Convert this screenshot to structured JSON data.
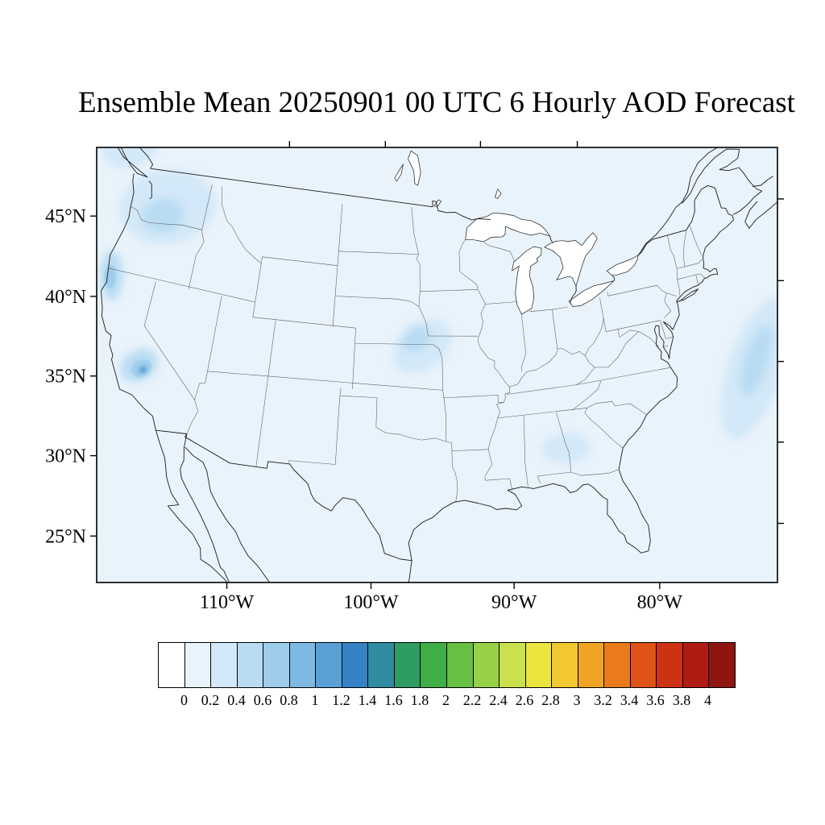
{
  "title": "Ensemble Mean 20250901 00 UTC 6 Hourly AOD Forecast",
  "axes": {
    "lat_ticks": [
      {
        "value": 45,
        "label": "45°N"
      },
      {
        "value": 40,
        "label": "40°N"
      },
      {
        "value": 35,
        "label": "35°N"
      },
      {
        "value": 30,
        "label": "30°N"
      },
      {
        "value": 25,
        "label": "25°N"
      }
    ],
    "lon_ticks": [
      {
        "value": -110,
        "label": "110°W"
      },
      {
        "value": -100,
        "label": "100°W"
      },
      {
        "value": -90,
        "label": "90°W"
      },
      {
        "value": -80,
        "label": "80°W"
      }
    ]
  },
  "colorbar": {
    "labels": [
      "0",
      "0.2",
      "0.4",
      "0.6",
      "0.8",
      "1",
      "1.2",
      "1.4",
      "1.6",
      "1.8",
      "2",
      "2.2",
      "2.4",
      "2.6",
      "2.8",
      "3",
      "3.2",
      "3.4",
      "3.6",
      "3.8",
      "4"
    ],
    "colors": [
      "#ffffff",
      "#e9f3fb",
      "#d3e8f8",
      "#b9dcf3",
      "#9ecdec",
      "#7db9e3",
      "#58a0d6",
      "#3583c4",
      "#2e8ba0",
      "#2f9d63",
      "#3fae46",
      "#66c043",
      "#97d148",
      "#c8e14d",
      "#ece43f",
      "#f2c831",
      "#f0a325",
      "#ea7b1c",
      "#df5317",
      "#cd3215",
      "#b01c14",
      "#8f1511"
    ]
  },
  "map_style": {
    "lake_fill": "#ffffff",
    "coast_color": "#1a1a1a",
    "state_color": "#5a5a5a",
    "frame_color": "#000000"
  },
  "chart_data": {
    "type": "heatmap",
    "title": "Ensemble Mean 20250901 00 UTC 6 Hourly AOD Forecast",
    "variable": "Aerosol Optical Depth",
    "region": "Continental United States (Lambert conformal view)",
    "levels": [
      0,
      0.2,
      0.4,
      0.6,
      0.8,
      1,
      1.2,
      1.4,
      1.6,
      1.8,
      2,
      2.2,
      2.4,
      2.6,
      2.8,
      3,
      3.2,
      3.4,
      3.6,
      3.8,
      4
    ],
    "background_level": "0-0.2",
    "features": [
      {
        "name": "pacific-northwest",
        "center_lon": -120.7,
        "center_lat": 46.9,
        "rx_deg": 4.6,
        "ry_deg": 2.4,
        "rot_deg": -8,
        "aod_range": "0.2-0.4",
        "color_index": 2,
        "soft": true
      },
      {
        "name": "pacific-northwest-core",
        "center_lon": -120.9,
        "center_lat": 46.3,
        "rx_deg": 2.0,
        "ry_deg": 1.1,
        "rot_deg": -10,
        "aod_range": "0.4-0.6",
        "color_index": 3,
        "soft": true
      },
      {
        "name": "bc-coast",
        "center_lon": -126.0,
        "center_lat": 50.2,
        "rx_deg": 3.0,
        "ry_deg": 1.6,
        "rot_deg": -25,
        "aod_range": "0.2-0.4",
        "color_index": 2,
        "soft": true
      },
      {
        "name": "nw-california-coast",
        "center_lon": -123.9,
        "center_lat": 41.6,
        "rx_deg": 1.0,
        "ry_deg": 1.6,
        "rot_deg": 0,
        "aod_range": "0.4-0.6",
        "color_index": 3,
        "soft": true
      },
      {
        "name": "nw-california-core",
        "center_lon": -124.0,
        "center_lat": 41.5,
        "rx_deg": 0.5,
        "ry_deg": 0.8,
        "rot_deg": 0,
        "aod_range": "0.6-0.8",
        "color_index": 4,
        "soft": false
      },
      {
        "name": "sierra-plume",
        "center_lon": -119.6,
        "center_lat": 36.4,
        "rx_deg": 1.6,
        "ry_deg": 1.0,
        "rot_deg": -30,
        "aod_range": "0.4-0.6",
        "color_index": 3,
        "soft": true
      },
      {
        "name": "sierra-plume-mid",
        "center_lon": -119.35,
        "center_lat": 36.25,
        "rx_deg": 0.85,
        "ry_deg": 0.55,
        "rot_deg": -30,
        "aod_range": "0.6-0.8",
        "color_index": 4,
        "soft": false
      },
      {
        "name": "sierra-plume-core",
        "center_lon": -119.25,
        "center_lat": 36.2,
        "rx_deg": 0.42,
        "ry_deg": 0.28,
        "rot_deg": -30,
        "aod_range": "0.8-1.0",
        "color_index": 5,
        "soft": false
      },
      {
        "name": "sierra-plume-peak",
        "center_lon": -119.2,
        "center_lat": 36.18,
        "rx_deg": 0.18,
        "ry_deg": 0.13,
        "rot_deg": -30,
        "aod_range": "1.0-1.2",
        "color_index": 6,
        "soft": false
      },
      {
        "name": "central-plains",
        "center_lon": -96.3,
        "center_lat": 39.9,
        "rx_deg": 2.8,
        "ry_deg": 1.5,
        "rot_deg": -38,
        "aod_range": "0.2-0.4",
        "color_index": 2,
        "soft": true
      },
      {
        "name": "central-plains-core",
        "center_lon": -96.8,
        "center_lat": 40.4,
        "rx_deg": 1.3,
        "ry_deg": 0.8,
        "rot_deg": -35,
        "aod_range": "0.4-0.6",
        "color_index": 3,
        "soft": true
      },
      {
        "name": "southeast",
        "center_lon": -85.2,
        "center_lat": 32.6,
        "rx_deg": 1.9,
        "ry_deg": 1.0,
        "rot_deg": -5,
        "aod_range": "0.2-0.4",
        "color_index": 2,
        "soft": true
      },
      {
        "name": "atlantic-offshore",
        "center_lon": -69.3,
        "center_lat": 35.0,
        "rx_deg": 2.2,
        "ry_deg": 4.8,
        "rot_deg": 18,
        "aod_range": "0.2-0.4",
        "color_index": 2,
        "soft": true
      },
      {
        "name": "atlantic-offshore-core",
        "center_lon": -69.0,
        "center_lat": 35.5,
        "rx_deg": 1.0,
        "ry_deg": 2.4,
        "rot_deg": 18,
        "aod_range": "0.4-0.6",
        "color_index": 3,
        "soft": true
      }
    ]
  }
}
